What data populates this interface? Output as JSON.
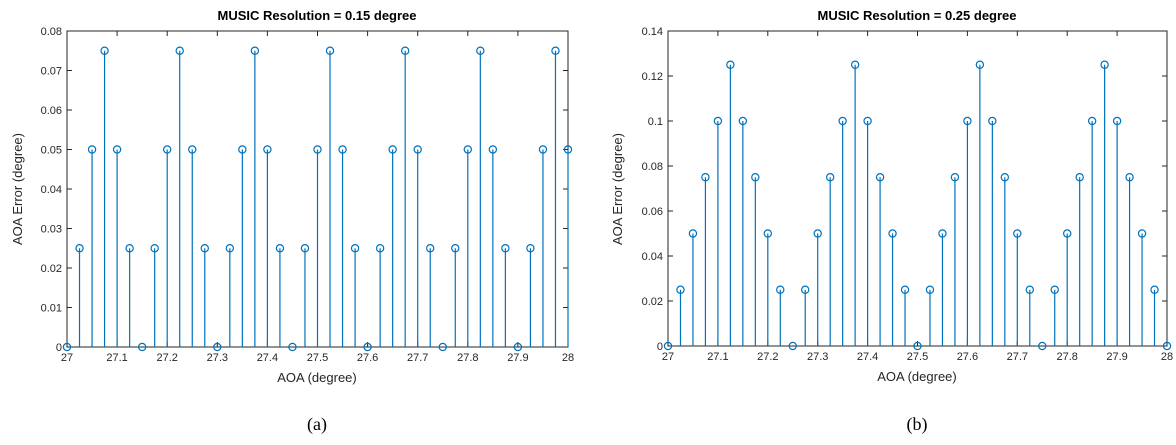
{
  "captions": [
    "(a)",
    "(b)"
  ],
  "colors": {
    "stem": "#0072BD",
    "axis": "#262626",
    "background": "#ffffff"
  },
  "chart_data": [
    {
      "type": "stem",
      "title": "MUSIC Resolution = 0.15 degree",
      "xlabel": "AOA (degree)",
      "ylabel": "AOA Error (degree)",
      "xlim": [
        27,
        28
      ],
      "ylim": [
        0,
        0.08
      ],
      "xticks": [
        "27",
        "27.1",
        "27.2",
        "27.3",
        "27.4",
        "27.5",
        "27.6",
        "27.7",
        "27.8",
        "27.9",
        "28"
      ],
      "yticks": [
        "0",
        "0.01",
        "0.02",
        "0.03",
        "0.04",
        "0.05",
        "0.06",
        "0.07",
        "0.08"
      ],
      "x": [
        27.0,
        27.025,
        27.05,
        27.075,
        27.1,
        27.125,
        27.15,
        27.175,
        27.2,
        27.225,
        27.25,
        27.275,
        27.3,
        27.325,
        27.35,
        27.375,
        27.4,
        27.425,
        27.45,
        27.475,
        27.5,
        27.525,
        27.55,
        27.575,
        27.6,
        27.625,
        27.65,
        27.675,
        27.7,
        27.725,
        27.75,
        27.775,
        27.8,
        27.825,
        27.85,
        27.875,
        27.9,
        27.925,
        27.95,
        27.975,
        28.0
      ],
      "values": [
        0,
        0.025,
        0.05,
        0.075,
        0.05,
        0.025,
        0,
        0.025,
        0.05,
        0.075,
        0.05,
        0.025,
        0,
        0.025,
        0.05,
        0.075,
        0.05,
        0.025,
        0,
        0.025,
        0.05,
        0.075,
        0.05,
        0.025,
        0,
        0.025,
        0.05,
        0.075,
        0.05,
        0.025,
        0,
        0.025,
        0.05,
        0.075,
        0.05,
        0.025,
        0,
        0.025,
        0.05,
        0.075,
        0.05
      ],
      "grid": false
    },
    {
      "type": "stem",
      "title": "MUSIC Resolution = 0.25 degree",
      "xlabel": "AOA (degree)",
      "ylabel": "AOA Error (degree)",
      "xlim": [
        27,
        28
      ],
      "ylim": [
        0,
        0.14
      ],
      "xticks": [
        "27",
        "27.1",
        "27.2",
        "27.3",
        "27.4",
        "27.5",
        "27.6",
        "27.7",
        "27.8",
        "27.9",
        "28"
      ],
      "yticks": [
        "0",
        "0.02",
        "0.04",
        "0.06",
        "0.08",
        "0.1",
        "0.12",
        "0.14"
      ],
      "x": [
        27.0,
        27.025,
        27.05,
        27.075,
        27.1,
        27.125,
        27.15,
        27.175,
        27.2,
        27.225,
        27.25,
        27.275,
        27.3,
        27.325,
        27.35,
        27.375,
        27.4,
        27.425,
        27.45,
        27.475,
        27.5,
        27.525,
        27.55,
        27.575,
        27.6,
        27.625,
        27.65,
        27.675,
        27.7,
        27.725,
        27.75,
        27.775,
        27.8,
        27.825,
        27.85,
        27.875,
        27.9,
        27.925,
        27.95,
        27.975,
        28.0
      ],
      "values": [
        0,
        0.025,
        0.05,
        0.075,
        0.1,
        0.125,
        0.1,
        0.075,
        0.05,
        0.025,
        0,
        0.025,
        0.05,
        0.075,
        0.1,
        0.125,
        0.1,
        0.075,
        0.05,
        0.025,
        0,
        0.025,
        0.05,
        0.075,
        0.1,
        0.125,
        0.1,
        0.075,
        0.05,
        0.025,
        0,
        0.025,
        0.05,
        0.075,
        0.1,
        0.125,
        0.1,
        0.075,
        0.05,
        0.025,
        0
      ],
      "grid": false
    }
  ]
}
